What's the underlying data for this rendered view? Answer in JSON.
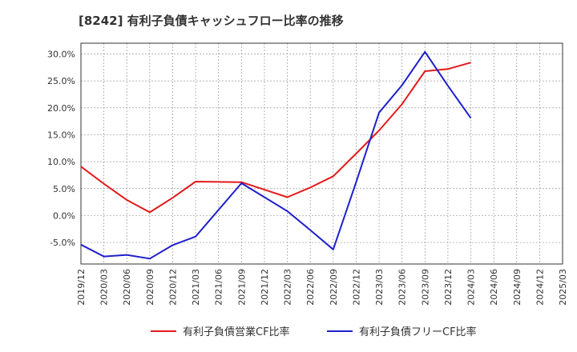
{
  "chart_data": {
    "type": "line",
    "title": "[8242]  有利子負債キャッシュフロー比率の推移",
    "x": [
      "2019/12",
      "2020/03",
      "2020/06",
      "2020/09",
      "2020/12",
      "2021/03",
      "2021/06",
      "2021/09",
      "2021/12",
      "2022/03",
      "2022/06",
      "2022/09",
      "2022/12",
      "2023/03",
      "2023/06",
      "2023/09",
      "2023/12",
      "2024/03",
      "2024/06",
      "2024/09",
      "2024/12",
      "2025/03"
    ],
    "y_ticks": [
      "30.0%",
      "25.0%",
      "20.0%",
      "15.0%",
      "10.0%",
      "5.0%",
      "0.0%",
      "-5.0%"
    ],
    "ylim": [
      -9.0,
      32.0
    ],
    "grid": true,
    "legend_position": "bottom",
    "series": [
      {
        "name": "有利子負債営業CF比率",
        "color": "#e31a1c",
        "values": [
          9.1,
          5.9,
          2.9,
          0.6,
          3.3,
          6.3,
          null,
          6.2,
          4.8,
          3.4,
          5.2,
          7.3,
          11.5,
          15.8,
          20.7,
          26.8,
          27.2,
          28.4,
          null,
          null,
          null,
          null
        ]
      },
      {
        "name": "有利子負債フリーCF比率",
        "color": "#1f1fcc",
        "values": [
          -5.4,
          -7.6,
          -7.3,
          -8.0,
          -5.5,
          -3.9,
          null,
          6.0,
          3.4,
          0.8,
          -2.7,
          -6.3,
          6.2,
          19.1,
          24.2,
          30.4,
          24.1,
          18.1,
          null,
          null,
          null,
          null
        ]
      }
    ]
  }
}
